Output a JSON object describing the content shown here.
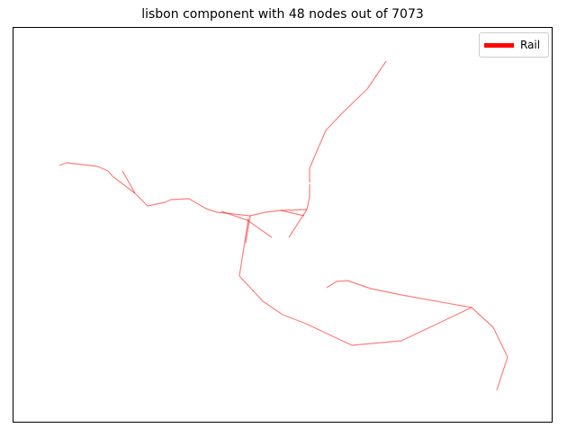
{
  "title": "lisbon component with 48 nodes out of 7073",
  "legend": {
    "label": "Rail",
    "color": "#ff0000"
  },
  "network": {
    "edge_color": "#ff0000",
    "edge_opacity": 0.5,
    "edges": [
      [
        [
          66,
          184
        ],
        [
          74,
          181
        ],
        [
          108,
          185
        ],
        [
          120,
          190
        ],
        [
          125,
          196
        ],
        [
          150,
          215
        ],
        [
          164,
          229
        ],
        [
          183,
          225
        ],
        [
          190,
          222
        ],
        [
          210,
          221
        ],
        [
          229,
          232
        ],
        [
          241,
          236
        ],
        [
          278,
          240
        ],
        [
          295,
          236
        ],
        [
          312,
          234
        ],
        [
          341,
          233
        ]
      ],
      [
        [
          136,
          190
        ],
        [
          150,
          215
        ]
      ],
      [
        [
          246,
          235
        ],
        [
          275,
          245
        ],
        [
          302,
          264
        ]
      ],
      [
        [
          312,
          234
        ],
        [
          338,
          240
        ]
      ],
      [
        [
          341,
          233
        ],
        [
          321,
          264
        ]
      ],
      [
        [
          341,
          233
        ],
        [
          344,
          219
        ],
        [
          344,
          205
        ]
      ],
      [
        [
          344,
          203
        ],
        [
          344,
          187
        ],
        [
          362,
          145
        ],
        [
          380,
          126
        ],
        [
          408,
          99
        ],
        [
          429,
          68
        ]
      ],
      [
        [
          278,
          240
        ],
        [
          273,
          270
        ]
      ],
      [
        [
          276,
          243
        ],
        [
          266,
          307
        ],
        [
          292,
          335
        ],
        [
          314,
          350
        ],
        [
          340,
          360
        ],
        [
          391,
          384
        ],
        [
          446,
          379
        ],
        [
          524,
          342
        ],
        [
          548,
          364
        ],
        [
          564,
          397
        ],
        [
          552,
          434
        ]
      ],
      [
        [
          363,
          320
        ],
        [
          374,
          313
        ],
        [
          386,
          312
        ],
        [
          412,
          321
        ],
        [
          446,
          328
        ],
        [
          524,
          342
        ]
      ]
    ]
  }
}
